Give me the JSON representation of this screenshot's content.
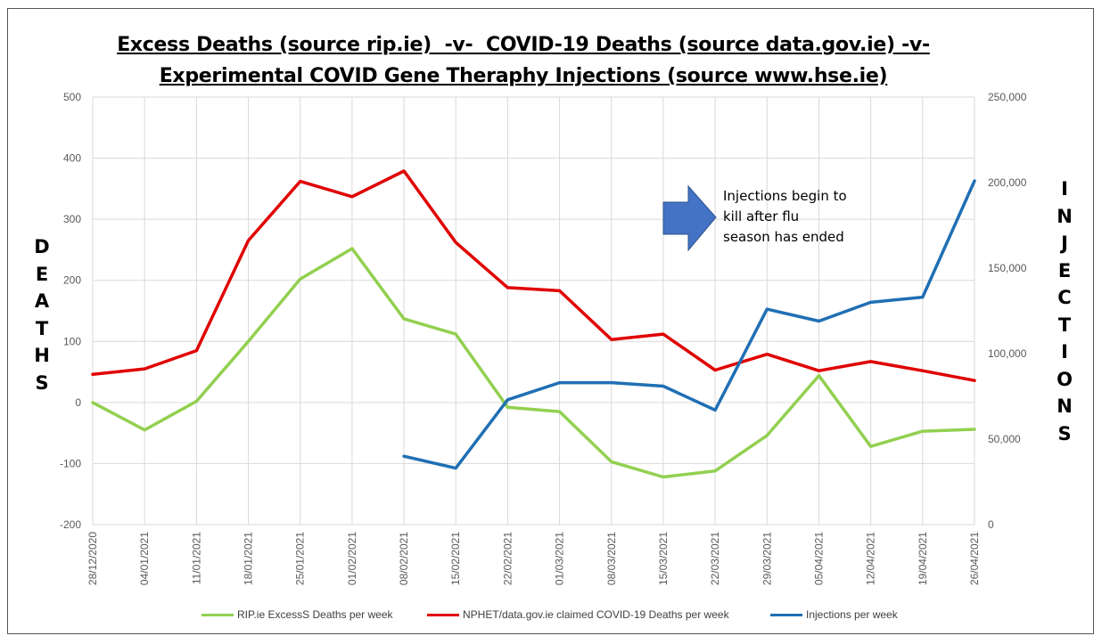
{
  "title": {
    "line1": "Excess Deaths (source rip.ie)  -v-  COVID-19 Deaths (source data.gov.ie) -v-",
    "line2": "Experimental COVID Gene Theraphy Injections (source www.hse.ie)"
  },
  "left_axis_title_letters": [
    "D",
    "E",
    "A",
    "T",
    "H",
    "S"
  ],
  "right_axis_title_letters": [
    "I",
    "N",
    "J",
    "E",
    "C",
    "T",
    "I",
    "O",
    "N",
    "S"
  ],
  "annotation": {
    "lines": [
      "Injections begin to",
      "kill after flu",
      "season has ended"
    ],
    "arrow_color": "#4472C4"
  },
  "colors": {
    "green": "#92D050",
    "red": "#E00000",
    "blue": "#1F6FB4",
    "grid": "#D9D9D9",
    "tick_text": "#595959"
  },
  "chart_data": {
    "type": "line",
    "categories": [
      "28/12/2020",
      "04/01/2021",
      "11/01/2021",
      "18/01/2021",
      "25/01/2021",
      "01/02/2021",
      "08/02/2021",
      "15/02/2021",
      "22/02/2021",
      "01/03/2021",
      "08/03/2021",
      "15/03/2021",
      "22/03/2021",
      "29/03/2021",
      "05/04/2021",
      "12/04/2021",
      "19/04/2021",
      "26/04/2021"
    ],
    "left_axis": {
      "ylim": [
        -200,
        500
      ],
      "ticks": [
        -200,
        -100,
        0,
        100,
        200,
        300,
        400,
        500
      ],
      "tick_labels": [
        "-200",
        "-100",
        "0",
        "100",
        "200",
        "300",
        "400",
        "500"
      ]
    },
    "right_axis": {
      "ylim": [
        0,
        250000
      ],
      "ticks": [
        0,
        50000,
        100000,
        150000,
        200000,
        250000
      ],
      "tick_labels": [
        "0",
        "50,000",
        "100,000",
        "150,000",
        "200,000",
        "250,000"
      ]
    },
    "series": [
      {
        "name": "RIP.ie ExcessS Deaths per week",
        "axis": "left",
        "color": "#92D050",
        "values": [
          0,
          -45,
          2,
          100,
          202,
          252,
          137,
          112,
          -8,
          -15,
          -97,
          -122,
          -112,
          -54,
          44,
          -72,
          -47,
          -44
        ]
      },
      {
        "name": "NPHET/data.gov.ie claimed COVID-19 Deaths per week",
        "axis": "left",
        "color": "#E00000",
        "values": [
          46,
          55,
          85,
          265,
          362,
          337,
          379,
          262,
          188,
          183,
          103,
          112,
          53,
          79,
          52,
          67,
          52,
          36
        ]
      },
      {
        "name": "Injections per week",
        "axis": "right",
        "color": "#1F6FB4",
        "values": [
          null,
          null,
          null,
          null,
          null,
          null,
          40000,
          33000,
          73000,
          83000,
          83000,
          81000,
          67000,
          126000,
          119000,
          130000,
          133000,
          201000
        ]
      }
    ],
    "grid": true,
    "legend_position": "bottom"
  }
}
